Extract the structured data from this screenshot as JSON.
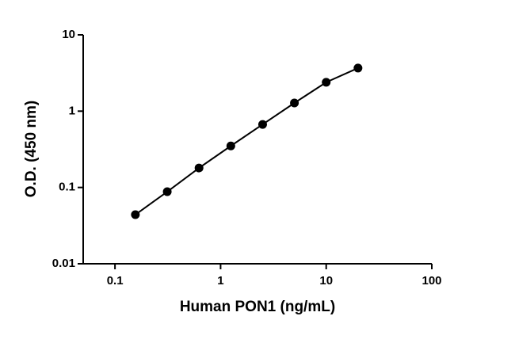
{
  "chart_data": {
    "type": "scatter",
    "x_label": "Human PON1 (ng/mL)",
    "y_label": "O.D. (450 nm)",
    "x": [
      0.156,
      0.3125,
      0.625,
      1.25,
      2.5,
      5,
      10,
      20
    ],
    "values": [
      0.044,
      0.088,
      0.18,
      0.35,
      0.67,
      1.28,
      2.39,
      3.67
    ],
    "color": "#000000",
    "x_scale": "log",
    "y_scale": "log",
    "xlim": [
      0.05,
      100
    ],
    "xticks": [
      0.1,
      1,
      10,
      100
    ],
    "ylim": [
      0.01,
      10
    ],
    "yticks": [
      0.01,
      0.1,
      1,
      10
    ]
  }
}
